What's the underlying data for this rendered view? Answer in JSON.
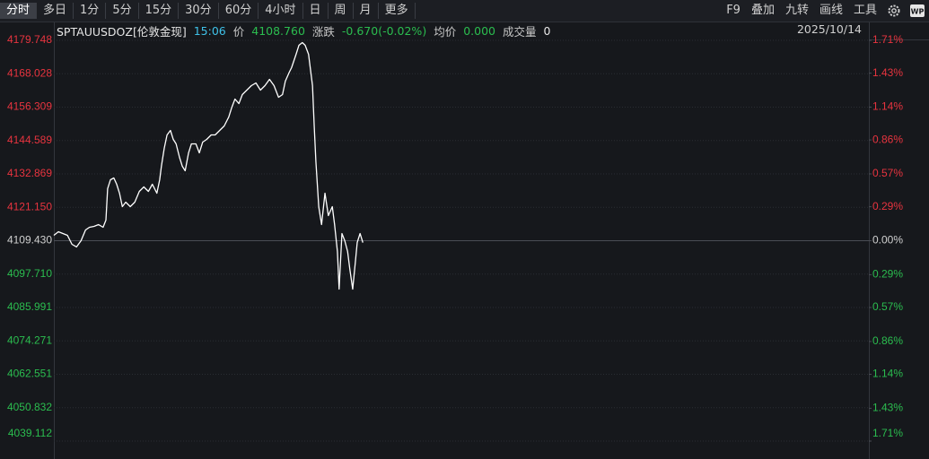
{
  "toolbar": {
    "periods": [
      "分时",
      "多日",
      "1分",
      "5分",
      "15分",
      "30分",
      "60分",
      "4小时",
      "日",
      "周",
      "月",
      "更多"
    ],
    "active_index": 0,
    "tools": [
      "F9",
      "叠加",
      "九转",
      "画线",
      "工具"
    ],
    "badge": "WP"
  },
  "info": {
    "items": [
      {
        "text": "SPTAUUSDOZ[伦敦金现]",
        "color": "#e6e6e6"
      },
      {
        "text": "15:06",
        "color": "#3fc1e8"
      },
      {
        "text": "价",
        "color": "#c8c8c8"
      },
      {
        "text": "4108.760",
        "color": "#2bbd4f"
      },
      {
        "text": "涨跌",
        "color": "#c8c8c8"
      },
      {
        "text": "-0.670(-0.02%)",
        "color": "#2bbd4f"
      },
      {
        "text": "均价",
        "color": "#c8c8c8"
      },
      {
        "text": "0.000",
        "color": "#2bbd4f"
      },
      {
        "text": "成交量",
        "color": "#c8c8c8"
      },
      {
        "text": "0",
        "color": "#e6e6e6"
      }
    ],
    "date": "2025/10/14"
  },
  "chart_data": {
    "type": "line",
    "color": "#ffffff",
    "grid": true,
    "colors": {
      "up": "#e8343f",
      "down": "#2bbd4f",
      "flat": "#d0d0d0"
    },
    "xlim": [
      0,
      1440
    ],
    "ylim": [
      4039.112,
      4179.748
    ],
    "yticks": [
      4179.748,
      4168.028,
      4156.309,
      4144.589,
      4132.869,
      {
        "value": 4121.15,
        "label": "4121.150"
      },
      {
        "value": 4109.43,
        "label": "4109.430"
      },
      {
        "value": 4097.71,
        "label": "4097.710"
      },
      4085.991,
      4074.271,
      4062.551,
      4050.832,
      4039.112
    ],
    "y2lim": [
      -1.71,
      1.71
    ],
    "y2ticks": [
      {
        "value": 1.71,
        "label": "1.71%"
      },
      {
        "value": 1.43,
        "label": "1.43%"
      },
      {
        "value": 1.14,
        "label": "1.14%"
      },
      {
        "value": 0.86,
        "label": "0.86%"
      },
      {
        "value": 0.57,
        "label": "0.57%"
      },
      {
        "value": 0.29,
        "label": "0.29%"
      },
      {
        "value": 0,
        "label": "0.00%"
      },
      {
        "value": -0.29,
        "label": "0.29%"
      },
      {
        "value": -0.57,
        "label": "0.57%"
      },
      {
        "value": -0.86,
        "label": "0.86%"
      },
      {
        "value": -1.14,
        "label": "1.14%"
      },
      {
        "value": -1.43,
        "label": "1.43%"
      },
      {
        "value": -1.71,
        "label": "1.71%"
      }
    ],
    "x": [
      0,
      8,
      16,
      24,
      32,
      40,
      48,
      56,
      63,
      71,
      79,
      87,
      92,
      95,
      100,
      106,
      111,
      116,
      121,
      127,
      135,
      143,
      151,
      159,
      167,
      174,
      182,
      187,
      190,
      195,
      200,
      206,
      211,
      216,
      222,
      227,
      232,
      238,
      243,
      251,
      257,
      263,
      270,
      278,
      285,
      293,
      301,
      309,
      314,
      320,
      327,
      333,
      341,
      349,
      357,
      365,
      373,
      381,
      389,
      397,
      404,
      409,
      416,
      420,
      428,
      433,
      439,
      444,
      450,
      457,
      460,
      463,
      468,
      473,
      479,
      485,
      492,
      496,
      501,
      504,
      509,
      514,
      519,
      523,
      528,
      533,
      536,
      541,
      546
    ],
    "values": [
      4111.32,
      4112.58,
      4111.95,
      4111.32,
      4108.17,
      4107.23,
      4109.43,
      4113.21,
      4114.15,
      4114.46,
      4115.09,
      4114.15,
      4116.67,
      4127.68,
      4130.82,
      4131.45,
      4129.25,
      4126.1,
      4121.38,
      4122.96,
      4121.38,
      4122.96,
      4126.73,
      4128.31,
      4126.73,
      4129.25,
      4126.1,
      4130.82,
      4135.54,
      4141.83,
      4146.55,
      4148.13,
      4144.98,
      4143.41,
      4138.69,
      4135.54,
      4133.97,
      4140.26,
      4143.41,
      4143.41,
      4140.26,
      4144.04,
      4144.98,
      4146.55,
      4146.55,
      4148.13,
      4149.7,
      4152.84,
      4155.99,
      4159.14,
      4157.56,
      4160.71,
      4162.28,
      4163.86,
      4164.8,
      4162.28,
      4163.86,
      4166.06,
      4163.86,
      4159.77,
      4160.71,
      4165.43,
      4168.58,
      4170.15,
      4174.87,
      4178.01,
      4178.96,
      4178.01,
      4174.87,
      4163.86,
      4149.7,
      4137.11,
      4121.38,
      4115.09,
      4126.1,
      4118.24,
      4121.38,
      4115.09,
      4105.65,
      4092.44,
      4111.95,
      4109.43,
      4105.65,
      4099.36,
      4092.44,
      4102.51,
      4108.8,
      4111.95,
      4108.76
    ]
  }
}
